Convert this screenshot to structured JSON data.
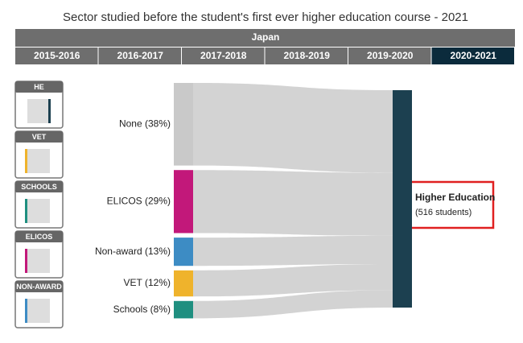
{
  "chart_data": {
    "type": "sankey",
    "title": "Sector studied before the student's first ever higher education course - 2021",
    "country": "Japan",
    "tabs": [
      "2015-2016",
      "2016-2017",
      "2017-2018",
      "2018-2019",
      "2019-2020",
      "2020-2021"
    ],
    "selected_tab": 5,
    "side_panels": [
      "HE",
      "VET",
      "SCHOOLS",
      "ELICOS",
      "NON-AWARD"
    ],
    "categories": [
      "None",
      "ELICOS",
      "Non-award",
      "VET",
      "Schools"
    ],
    "values": [
      38,
      29,
      13,
      12,
      8
    ],
    "value_labels": [
      "None (38%)",
      "ELICOS (29%)",
      "Non-award (13%)",
      "VET (12%)",
      "Schools (8%)"
    ],
    "colors": [
      "#c9c9c9",
      "#c2187a",
      "#3d8cc4",
      "#efb32c",
      "#1f8f80"
    ],
    "target": {
      "name": "Higher Education",
      "count_label": "(516 students)",
      "color": "#1c4050"
    },
    "flow_color": "#d3d3d3"
  }
}
